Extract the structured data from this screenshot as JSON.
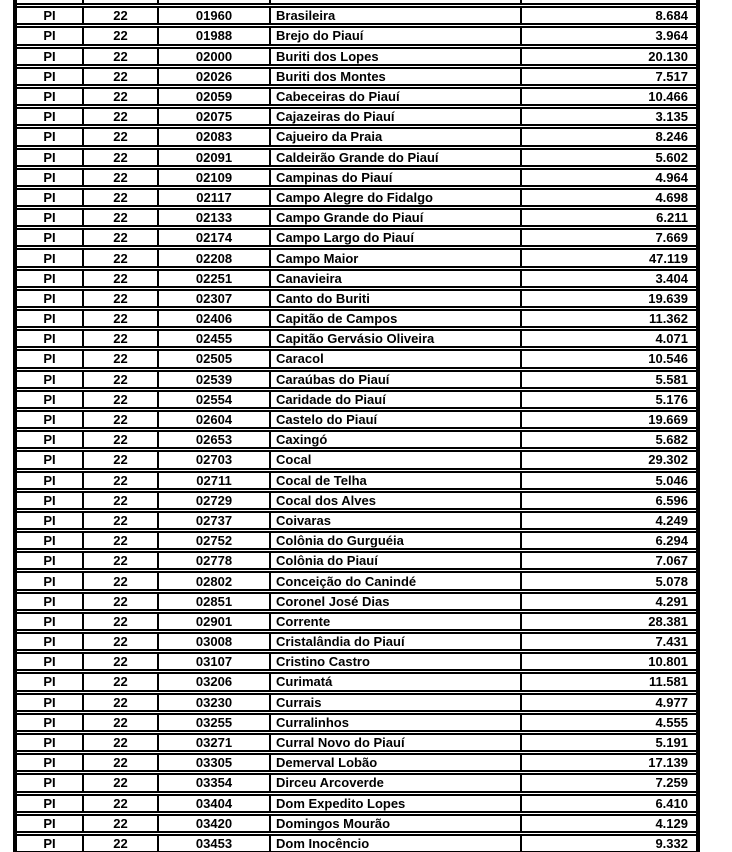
{
  "document": {
    "type": "municipality-population-table",
    "state_abbreviation": "PI",
    "state_code": "22"
  },
  "table": {
    "columns": [
      "uf",
      "state_code",
      "municipality_code",
      "municipality_name",
      "population"
    ],
    "rows": [
      {
        "uf": "PI",
        "state_code": "22",
        "municipality_code": "01960",
        "municipality_name": "Brasileira",
        "population": "8.684"
      },
      {
        "uf": "PI",
        "state_code": "22",
        "municipality_code": "01988",
        "municipality_name": "Brejo do Piauí",
        "population": "3.964"
      },
      {
        "uf": "PI",
        "state_code": "22",
        "municipality_code": "02000",
        "municipality_name": "Buriti dos Lopes",
        "population": "20.130"
      },
      {
        "uf": "PI",
        "state_code": "22",
        "municipality_code": "02026",
        "municipality_name": "Buriti dos Montes",
        "population": "7.517"
      },
      {
        "uf": "PI",
        "state_code": "22",
        "municipality_code": "02059",
        "municipality_name": "Cabeceiras do Piauí",
        "population": "10.466"
      },
      {
        "uf": "PI",
        "state_code": "22",
        "municipality_code": "02075",
        "municipality_name": "Cajazeiras do Piauí",
        "population": "3.135"
      },
      {
        "uf": "PI",
        "state_code": "22",
        "municipality_code": "02083",
        "municipality_name": "Cajueiro da Praia",
        "population": "8.246"
      },
      {
        "uf": "PI",
        "state_code": "22",
        "municipality_code": "02091",
        "municipality_name": "Caldeirão Grande do Piauí",
        "population": "5.602"
      },
      {
        "uf": "PI",
        "state_code": "22",
        "municipality_code": "02109",
        "municipality_name": "Campinas do Piauí",
        "population": "4.964"
      },
      {
        "uf": "PI",
        "state_code": "22",
        "municipality_code": "02117",
        "municipality_name": "Campo Alegre do Fidalgo",
        "population": "4.698"
      },
      {
        "uf": "PI",
        "state_code": "22",
        "municipality_code": "02133",
        "municipality_name": "Campo Grande do Piauí",
        "population": "6.211"
      },
      {
        "uf": "PI",
        "state_code": "22",
        "municipality_code": "02174",
        "municipality_name": "Campo Largo do Piauí",
        "population": "7.669"
      },
      {
        "uf": "PI",
        "state_code": "22",
        "municipality_code": "02208",
        "municipality_name": "Campo Maior",
        "population": "47.119"
      },
      {
        "uf": "PI",
        "state_code": "22",
        "municipality_code": "02251",
        "municipality_name": "Canavieira",
        "population": "3.404"
      },
      {
        "uf": "PI",
        "state_code": "22",
        "municipality_code": "02307",
        "municipality_name": "Canto do Buriti",
        "population": "19.639"
      },
      {
        "uf": "PI",
        "state_code": "22",
        "municipality_code": "02406",
        "municipality_name": "Capitão de Campos",
        "population": "11.362"
      },
      {
        "uf": "PI",
        "state_code": "22",
        "municipality_code": "02455",
        "municipality_name": "Capitão Gervásio Oliveira",
        "population": "4.071"
      },
      {
        "uf": "PI",
        "state_code": "22",
        "municipality_code": "02505",
        "municipality_name": "Caracol",
        "population": "10.546"
      },
      {
        "uf": "PI",
        "state_code": "22",
        "municipality_code": "02539",
        "municipality_name": "Caraúbas do Piauí",
        "population": "5.581"
      },
      {
        "uf": "PI",
        "state_code": "22",
        "municipality_code": "02554",
        "municipality_name": "Caridade do Piauí",
        "population": "5.176"
      },
      {
        "uf": "PI",
        "state_code": "22",
        "municipality_code": "02604",
        "municipality_name": "Castelo do Piauí",
        "population": "19.669"
      },
      {
        "uf": "PI",
        "state_code": "22",
        "municipality_code": "02653",
        "municipality_name": "Caxingó",
        "population": "5.682"
      },
      {
        "uf": "PI",
        "state_code": "22",
        "municipality_code": "02703",
        "municipality_name": "Cocal",
        "population": "29.302"
      },
      {
        "uf": "PI",
        "state_code": "22",
        "municipality_code": "02711",
        "municipality_name": "Cocal de Telha",
        "population": "5.046"
      },
      {
        "uf": "PI",
        "state_code": "22",
        "municipality_code": "02729",
        "municipality_name": "Cocal dos Alves",
        "population": "6.596"
      },
      {
        "uf": "PI",
        "state_code": "22",
        "municipality_code": "02737",
        "municipality_name": "Coivaras",
        "population": "4.249"
      },
      {
        "uf": "PI",
        "state_code": "22",
        "municipality_code": "02752",
        "municipality_name": "Colônia do Gurguéia",
        "population": "6.294"
      },
      {
        "uf": "PI",
        "state_code": "22",
        "municipality_code": "02778",
        "municipality_name": "Colônia do Piauí",
        "population": "7.067"
      },
      {
        "uf": "PI",
        "state_code": "22",
        "municipality_code": "02802",
        "municipality_name": "Conceição do Canindé",
        "population": "5.078"
      },
      {
        "uf": "PI",
        "state_code": "22",
        "municipality_code": "02851",
        "municipality_name": "Coronel José Dias",
        "population": "4.291"
      },
      {
        "uf": "PI",
        "state_code": "22",
        "municipality_code": "02901",
        "municipality_name": "Corrente",
        "population": "28.381"
      },
      {
        "uf": "PI",
        "state_code": "22",
        "municipality_code": "03008",
        "municipality_name": "Cristalândia do Piauí",
        "population": "7.431"
      },
      {
        "uf": "PI",
        "state_code": "22",
        "municipality_code": "03107",
        "municipality_name": "Cristino Castro",
        "population": "10.801"
      },
      {
        "uf": "PI",
        "state_code": "22",
        "municipality_code": "03206",
        "municipality_name": "Curimatá",
        "population": "11.581"
      },
      {
        "uf": "PI",
        "state_code": "22",
        "municipality_code": "03230",
        "municipality_name": "Currais",
        "population": "4.977"
      },
      {
        "uf": "PI",
        "state_code": "22",
        "municipality_code": "03255",
        "municipality_name": "Curralinhos",
        "population": "4.555"
      },
      {
        "uf": "PI",
        "state_code": "22",
        "municipality_code": "03271",
        "municipality_name": "Curral Novo do Piauí",
        "population": "5.191"
      },
      {
        "uf": "PI",
        "state_code": "22",
        "municipality_code": "03305",
        "municipality_name": "Demerval Lobão",
        "population": "17.139"
      },
      {
        "uf": "PI",
        "state_code": "22",
        "municipality_code": "03354",
        "municipality_name": "Dirceu Arcoverde",
        "population": "7.259"
      },
      {
        "uf": "PI",
        "state_code": "22",
        "municipality_code": "03404",
        "municipality_name": "Dom Expedito Lopes",
        "population": "6.410"
      },
      {
        "uf": "PI",
        "state_code": "22",
        "municipality_code": "03420",
        "municipality_name": "Domingos Mourão",
        "population": "4.129"
      },
      {
        "uf": "PI",
        "state_code": "22",
        "municipality_code": "03453",
        "municipality_name": "Dom Inocêncio",
        "population": "9.332"
      }
    ]
  }
}
